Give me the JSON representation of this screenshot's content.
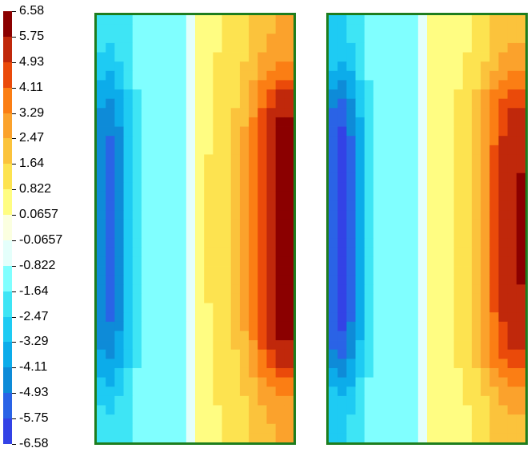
{
  "chart_data": {
    "type": "heatmap",
    "title": "",
    "colorbar": {
      "levels": [
        "6.58",
        "5.75",
        "4.93",
        "4.11",
        "3.29",
        "2.47",
        "1.64",
        "0.822",
        "0.0657",
        "-0.0657",
        "-0.822",
        "-1.64",
        "-2.47",
        "-3.29",
        "-4.11",
        "-4.93",
        "-5.75",
        "-6.58"
      ],
      "colors": [
        "#8b0000",
        "#c0280b",
        "#ea4a0a",
        "#fb7e14",
        "#fba22c",
        "#fbc33c",
        "#fde350",
        "#fffd82",
        "#fbffe0",
        "#e4fffb",
        "#80ffff",
        "#3ee5f5",
        "#1ecbf3",
        "#0cacea",
        "#0e8bd8",
        "#2a63e6",
        "#3342e6",
        "#050f8d"
      ]
    },
    "panels": [
      {
        "name": "left",
        "value_range": [
          -5.2,
          6.5
        ],
        "grid": "on-cells",
        "field_description_values": {
          "left_edge": -1.9,
          "left_trough": -5.1,
          "mid_cold": -0.9,
          "center": 0.7,
          "right_peak": 6.4,
          "right_edge": 4.3
        }
      },
      {
        "name": "right",
        "value_range": [
          -6.1,
          5.9
        ],
        "grid": "on-cells",
        "field_description_values": {
          "left_edge": -2.2,
          "left_trough": -6.0,
          "mid_cold": -0.9,
          "center": 0.4,
          "right_peak": 5.8,
          "right_edge": 3.9
        }
      }
    ]
  }
}
